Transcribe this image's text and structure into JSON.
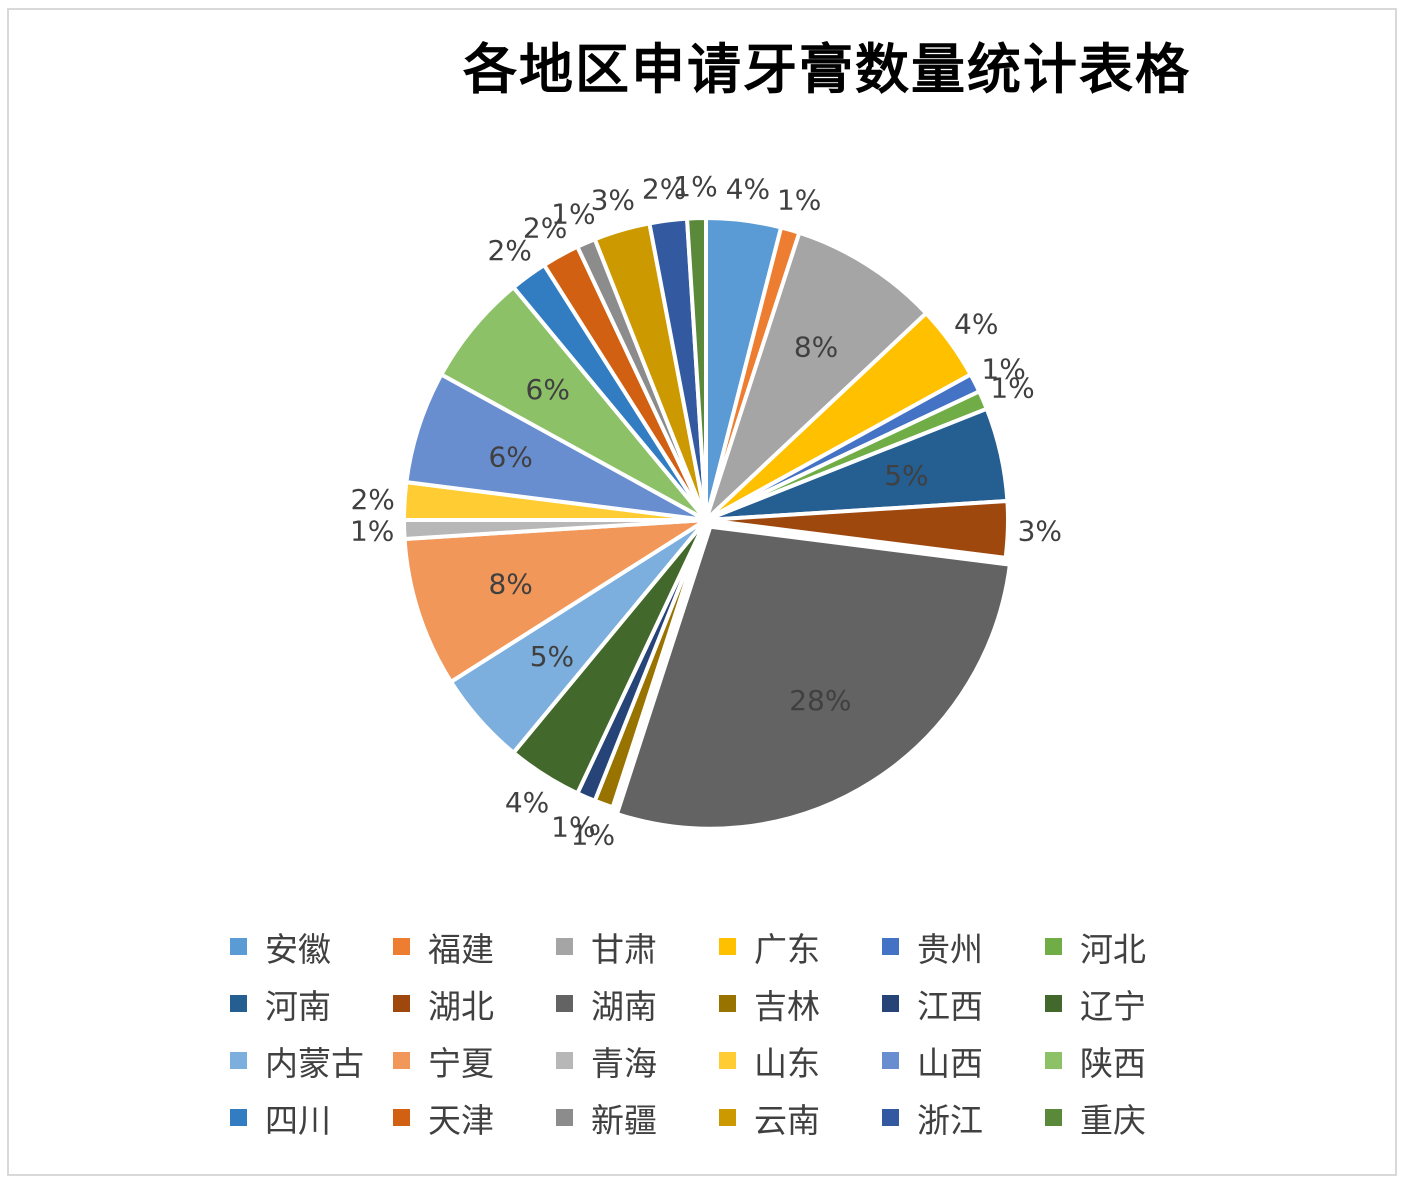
{
  "chart_data": {
    "type": "pie",
    "title": "各地区申请牙膏数量统计表格",
    "legend_position": "bottom",
    "slices": [
      {
        "name": "安徽",
        "value": 4,
        "label": "4%",
        "color": "#5b9bd5"
      },
      {
        "name": "福建",
        "value": 1,
        "label": "1%",
        "color": "#ed7d31"
      },
      {
        "name": "甘肃",
        "value": 8,
        "label": "8%",
        "color": "#a5a5a5"
      },
      {
        "name": "广东",
        "value": 4,
        "label": "4%",
        "color": "#ffc000"
      },
      {
        "name": "贵州",
        "value": 1,
        "label": "1%",
        "color": "#4472c4"
      },
      {
        "name": "河北",
        "value": 1,
        "label": "1%",
        "color": "#70ad47"
      },
      {
        "name": "河南",
        "value": 5,
        "label": "5%",
        "color": "#255e91"
      },
      {
        "name": "湖北",
        "value": 3,
        "label": "3%",
        "color": "#9e480e"
      },
      {
        "name": "湖南",
        "value": 28,
        "label": "28%",
        "color": "#636363"
      },
      {
        "name": "吉林",
        "value": 1,
        "label": "1%",
        "color": "#997300"
      },
      {
        "name": "江西",
        "value": 1,
        "label": "1%",
        "color": "#264478"
      },
      {
        "name": "辽宁",
        "value": 4,
        "label": "4%",
        "color": "#43682b"
      },
      {
        "name": "内蒙古",
        "value": 5,
        "label": "5%",
        "color": "#7cafdd"
      },
      {
        "name": "宁夏",
        "value": 8,
        "label": "8%",
        "color": "#f1975a"
      },
      {
        "name": "青海",
        "value": 1,
        "label": "1%",
        "color": "#b7b7b7"
      },
      {
        "name": "山东",
        "value": 2,
        "label": "2%",
        "color": "#ffcd33"
      },
      {
        "name": "山西",
        "value": 6,
        "label": "6%",
        "color": "#698ed0"
      },
      {
        "name": "陕西",
        "value": 6,
        "label": "6%",
        "color": "#8cc168"
      },
      {
        "name": "四川",
        "value": 2,
        "label": "2%",
        "color": "#327dc2"
      },
      {
        "name": "天津",
        "value": 2,
        "label": "2%",
        "color": "#d26012"
      },
      {
        "name": "新疆",
        "value": 1,
        "label": "1%",
        "color": "#8c8c8c"
      },
      {
        "name": "云南",
        "value": 3,
        "label": "3%",
        "color": "#cc9a00"
      },
      {
        "name": "浙江",
        "value": 2,
        "label": "2%",
        "color": "#335aa1"
      },
      {
        "name": "重庆",
        "value": 1,
        "label": "1%",
        "color": "#5a8a39"
      }
    ]
  }
}
